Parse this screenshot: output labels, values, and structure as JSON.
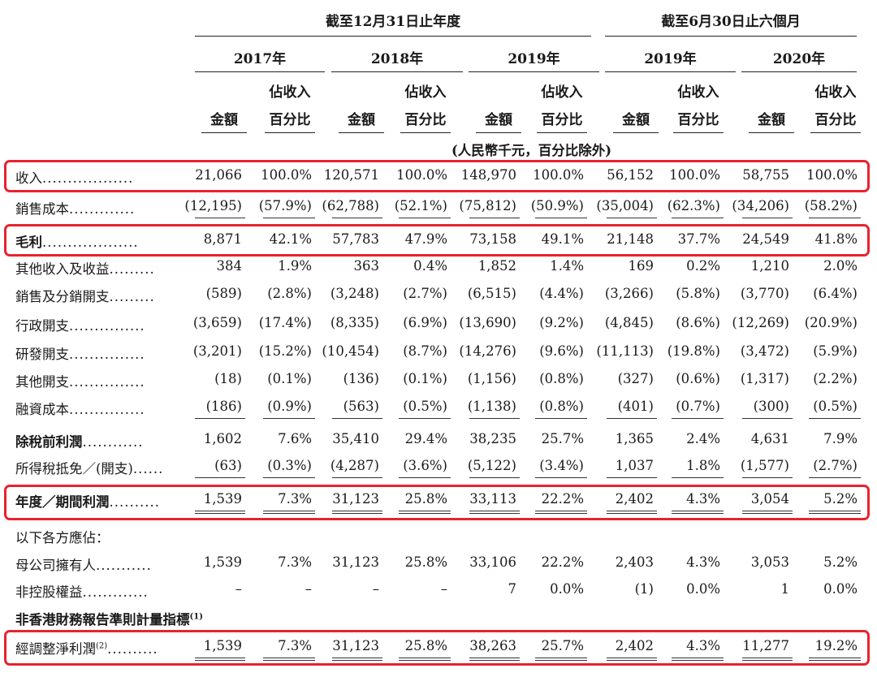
{
  "header": {
    "group_full_year": "截至12月31日止年度",
    "group_six_months": "截至6月30日止六個月",
    "years": [
      "2017年",
      "2018年",
      "2019年",
      "2019年",
      "2020年"
    ],
    "col_amount": "金額",
    "col_pct_line1": "佔收入",
    "col_pct_line2": "百分比",
    "units": "(人民幣千元，百分比除外)"
  },
  "rows": [
    {
      "label": "收入",
      "dots": "..................",
      "bold": false,
      "values": [
        "21,066",
        "100.0%",
        "120,571",
        "100.0%",
        "148,970",
        "100.0%",
        "56,152",
        "100.0%",
        "58,755",
        "100.0%"
      ]
    },
    {
      "label": "銷售成本",
      "dots": ".............",
      "bold": false,
      "values": [
        "(12,195)",
        "(57.9%)",
        "(62,788)",
        "(52.1%)",
        "(75,812)",
        "(50.9%)",
        "(35,004)",
        "(62.3%)",
        "(34,206)",
        "(58.2%)"
      ]
    },
    {
      "label": "毛利",
      "dots": "...................",
      "bold": true,
      "values": [
        "8,871",
        "42.1%",
        "57,783",
        "47.9%",
        "73,158",
        "49.1%",
        "21,148",
        "37.7%",
        "24,549",
        "41.8%"
      ]
    },
    {
      "label": "其他收入及收益",
      "dots": ".........",
      "bold": false,
      "values": [
        "384",
        "1.9%",
        "363",
        "0.4%",
        "1,852",
        "1.4%",
        "169",
        "0.2%",
        "1,210",
        "2.0%"
      ]
    },
    {
      "label": "銷售及分銷開支",
      "dots": ".........",
      "bold": false,
      "values": [
        "(589)",
        "(2.8%)",
        "(3,248)",
        "(2.7%)",
        "(6,515)",
        "(4.4%)",
        "(3,266)",
        "(5.8%)",
        "(3,770)",
        "(6.4%)"
      ]
    },
    {
      "label": "行政開支",
      "dots": "...............",
      "bold": false,
      "values": [
        "(3,659)",
        "(17.4%)",
        "(8,335)",
        "(6.9%)",
        "(13,690)",
        "(9.2%)",
        "(4,845)",
        "(8.6%)",
        "(12,269)",
        "(20.9%)"
      ]
    },
    {
      "label": "研發開支",
      "dots": "...............",
      "bold": false,
      "values": [
        "(3,201)",
        "(15.2%)",
        "(10,454)",
        "(8.7%)",
        "(14,276)",
        "(9.6%)",
        "(11,113)",
        "(19.8%)",
        "(3,472)",
        "(5.9%)"
      ]
    },
    {
      "label": "其他開支",
      "dots": "...............",
      "bold": false,
      "values": [
        "(18)",
        "(0.1%)",
        "(136)",
        "(0.1%)",
        "(1,156)",
        "(0.8%)",
        "(327)",
        "(0.6%)",
        "(1,317)",
        "(2.2%)"
      ]
    },
    {
      "label": "融資成本",
      "dots": "...............",
      "bold": false,
      "values": [
        "(186)",
        "(0.9%)",
        "(563)",
        "(0.5%)",
        "(1,138)",
        "(0.8%)",
        "(401)",
        "(0.7%)",
        "(300)",
        "(0.5%)"
      ]
    },
    {
      "label": "除稅前利潤",
      "dots": "............",
      "bold": true,
      "values": [
        "1,602",
        "7.6%",
        "35,410",
        "29.4%",
        "38,235",
        "25.7%",
        "1,365",
        "2.4%",
        "4,631",
        "7.9%"
      ]
    },
    {
      "label": "所得稅抵免／(開支)",
      "dots": "......",
      "bold": false,
      "values": [
        "(63)",
        "(0.3%)",
        "(4,287)",
        "(3.6%)",
        "(5,122)",
        "(3.4%)",
        "1,037",
        "1.8%",
        "(1,577)",
        "(2.7%)"
      ]
    },
    {
      "label": "年度／期間利潤",
      "dots": "..........",
      "bold": true,
      "values": [
        "1,539",
        "7.3%",
        "31,123",
        "25.8%",
        "33,113",
        "22.2%",
        "2,402",
        "4.3%",
        "3,054",
        "5.2%"
      ]
    },
    {
      "label": "以下各方應佔：",
      "dots": "",
      "bold": false,
      "values": [
        "",
        "",
        "",
        "",
        "",
        "",
        "",
        "",
        "",
        ""
      ]
    },
    {
      "label": "母公司擁有人",
      "dots": "...........",
      "bold": false,
      "values": [
        "1,539",
        "7.3%",
        "31,123",
        "25.8%",
        "33,106",
        "22.2%",
        "2,403",
        "4.3%",
        "3,053",
        "5.2%"
      ]
    },
    {
      "label": "非控股權益",
      "dots": ".............",
      "bold": false,
      "values": [
        "–",
        "–",
        "–",
        "–",
        "7",
        "0.0%",
        "(1)",
        "0.0%",
        "1",
        "0.0%"
      ]
    },
    {
      "label": "非香港財務報告準則計量指標",
      "sup": "(1)",
      "dots": "",
      "bold": true,
      "values": [
        "",
        "",
        "",
        "",
        "",
        "",
        "",
        "",
        "",
        ""
      ]
    },
    {
      "label": "經調整淨利潤",
      "sup": "(2)",
      "dots": "..........",
      "bold": false,
      "values": [
        "1,539",
        "7.3%",
        "31,123",
        "25.8%",
        "38,263",
        "25.7%",
        "2,402",
        "4.3%",
        "11,277",
        "19.2%"
      ]
    }
  ]
}
